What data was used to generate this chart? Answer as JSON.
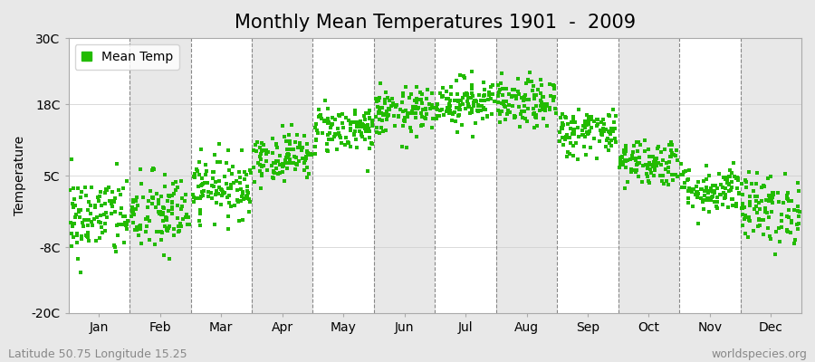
{
  "title": "Monthly Mean Temperatures 1901  -  2009",
  "ylabel": "Temperature",
  "ylim": [
    -20,
    30
  ],
  "yticks": [
    -20,
    -8,
    5,
    18,
    30
  ],
  "ytick_labels": [
    "-20C",
    "-8C",
    "5C",
    "18C",
    "30C"
  ],
  "months": [
    "Jan",
    "Feb",
    "Mar",
    "Apr",
    "May",
    "Jun",
    "Jul",
    "Aug",
    "Sep",
    "Oct",
    "Nov",
    "Dec"
  ],
  "month_means": [
    -2.5,
    -2.0,
    3.0,
    8.5,
    13.5,
    16.5,
    18.5,
    18.0,
    13.0,
    7.5,
    2.5,
    -1.0
  ],
  "month_stds": [
    3.8,
    3.8,
    2.8,
    2.2,
    2.2,
    2.2,
    2.2,
    2.2,
    2.2,
    2.2,
    2.2,
    3.2
  ],
  "n_years": 109,
  "marker_color": "#22bb00",
  "plot_bg_color": "#f0f0f0",
  "band_color_odd": "#ffffff",
  "band_color_even": "#e8e8e8",
  "fig_bg_color": "#e8e8e8",
  "grid_color": "#888888",
  "legend_label": "Mean Temp",
  "footer_left": "Latitude 50.75 Longitude 15.25",
  "footer_right": "worldspecies.org",
  "title_fontsize": 15,
  "axis_fontsize": 10,
  "footer_fontsize": 9
}
